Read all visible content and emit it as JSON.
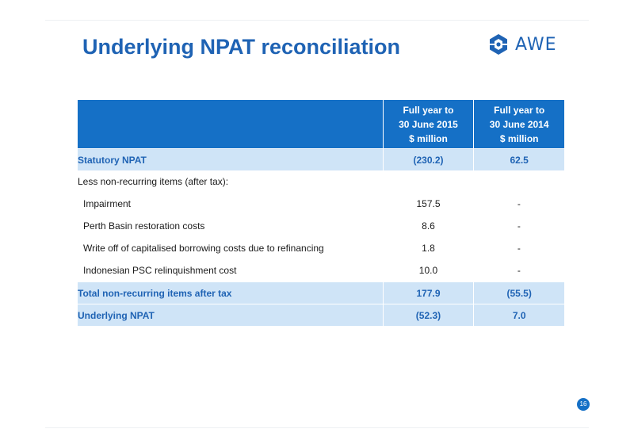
{
  "title": "Underlying NPAT reconciliation",
  "logo": {
    "text": "AWE",
    "icon": "awe-logo-icon",
    "color": "#1f63b4"
  },
  "table": {
    "columns": [
      {
        "label": "",
        "lines": []
      },
      {
        "lines": [
          "Full year to",
          "30 June 2015",
          "$ million"
        ]
      },
      {
        "lines": [
          "Full year to",
          "30 June 2014",
          "$ million"
        ]
      }
    ],
    "rows": {
      "statutory": {
        "label": "Statutory NPAT",
        "fy2015": "(230.2)",
        "fy2014": "62.5"
      },
      "less": {
        "label": "Less non-recurring items (after tax):"
      },
      "impairment": {
        "label": "Impairment",
        "fy2015": "157.5",
        "fy2014": "-"
      },
      "perth": {
        "label": "Perth Basin restoration costs",
        "fy2015": "8.6",
        "fy2014": "-"
      },
      "writeoff": {
        "label": "Write off of capitalised borrowing costs due to refinancing",
        "fy2015": "1.8",
        "fy2014": "-"
      },
      "indonesian": {
        "label": "Indonesian PSC relinquishment cost",
        "fy2015": "10.0",
        "fy2014": "-"
      },
      "total": {
        "label": "Total non-recurring items after tax",
        "fy2015": "177.9",
        "fy2014": "(55.5)"
      },
      "underlying": {
        "label": "Underlying NPAT",
        "fy2015": "(52.3)",
        "fy2014": "7.0"
      }
    }
  },
  "page_number": "16",
  "colors": {
    "header_bg": "#1570c6",
    "highlight_bg": "#cfe4f7",
    "accent_text": "#1f63b4"
  }
}
